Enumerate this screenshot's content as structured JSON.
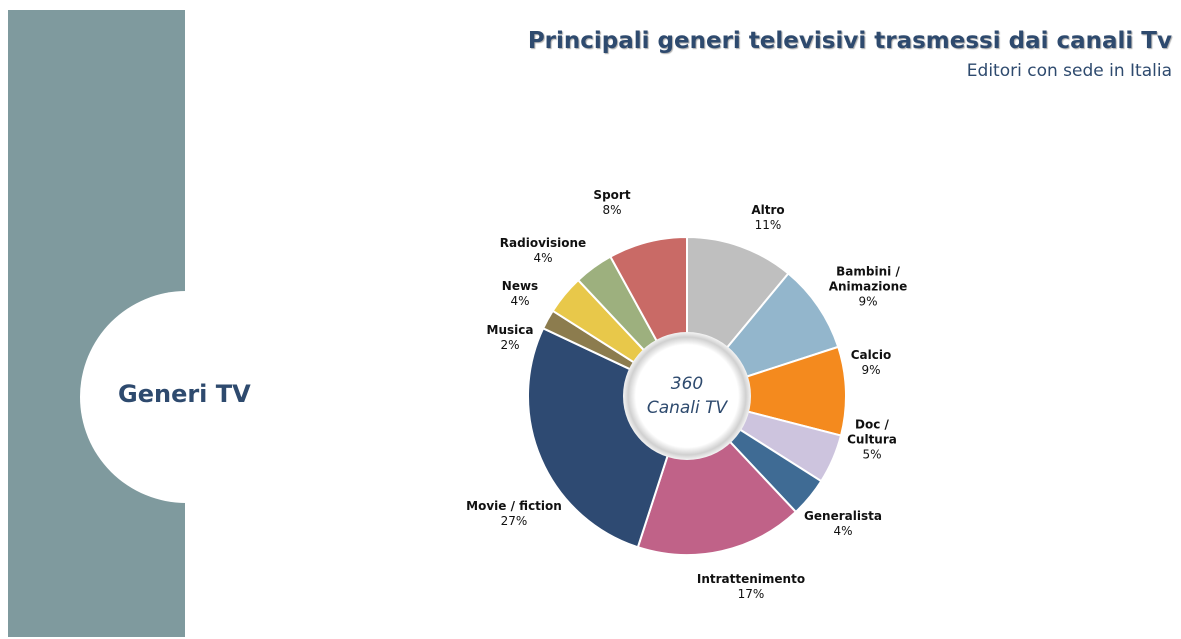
{
  "chart_data": {
    "type": "donut",
    "title": "Principali generi televisivi trasmessi dai canali Tv",
    "subtitle": "Editori con sede in Italia",
    "section": "Generi TV",
    "center_text": [
      "360",
      "Canali TV"
    ],
    "categories": [
      "Altro",
      "Bambini / Animazione",
      "Calcio",
      "Doc / Cultura",
      "Generalista",
      "Intrattenimento",
      "Movie / fiction",
      "Musica",
      "News",
      "Radiovisione",
      "Sport"
    ],
    "values": [
      11,
      9,
      9,
      5,
      4,
      17,
      27,
      2,
      4,
      4,
      8
    ],
    "value_labels": [
      "11%",
      "9%",
      "9%",
      "5%",
      "4%",
      "17%",
      "27%",
      "2%",
      "4%",
      "4%",
      "8%"
    ],
    "colors": [
      "#bfbfbf",
      "#93b6cc",
      "#f48a1e",
      "#cdc4de",
      "#3f6b94",
      "#c06288",
      "#2e4a72",
      "#8c7c4e",
      "#e8c84a",
      "#9db07e",
      "#c96a66"
    ]
  }
}
